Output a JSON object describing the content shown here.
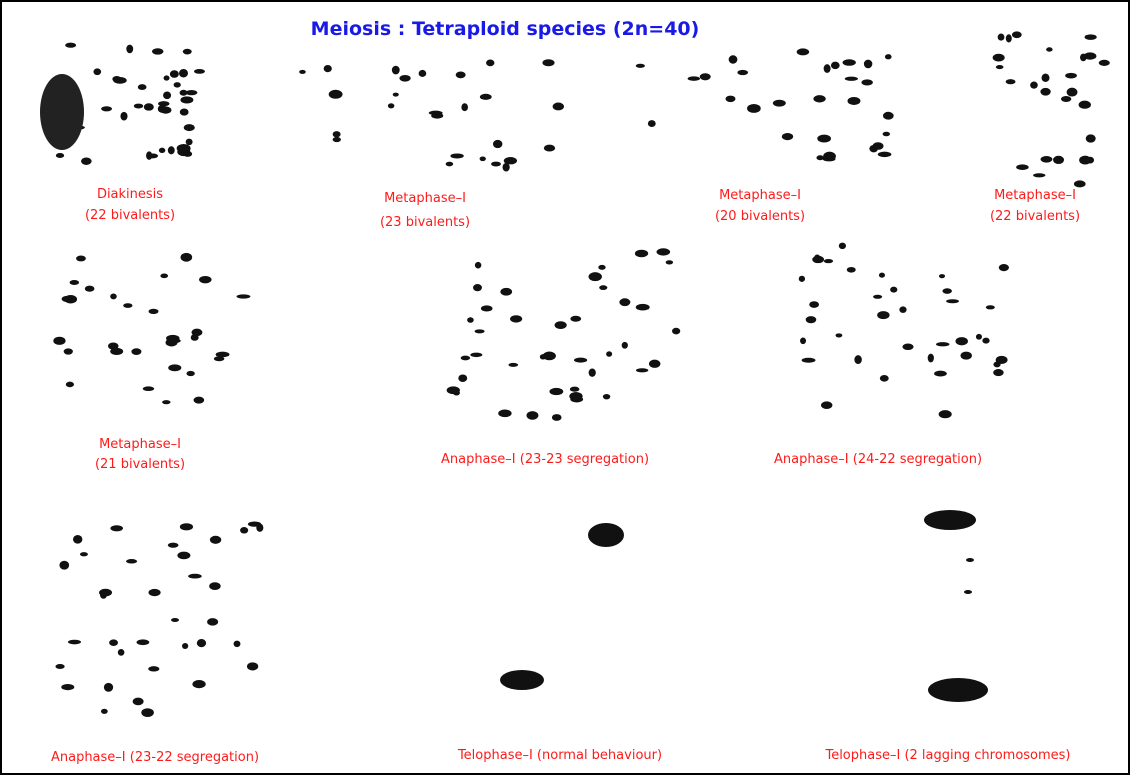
{
  "header": {
    "title": "Meiosis : Tetraploid species (2n=40)"
  },
  "panels": [
    {
      "lines": [
        "Diakinesis",
        "(22 bivalents)"
      ]
    },
    {
      "lines": [
        "Metaphase–I",
        "(23 bivalents)"
      ]
    },
    {
      "lines": [
        "Metaphase–I",
        "(20 bivalents)"
      ]
    },
    {
      "lines": [
        "Metaphase–I",
        "(22 bivalents)"
      ]
    },
    {
      "lines": [
        "Metaphase–I",
        "(21 bivalents)"
      ]
    },
    {
      "lines": [
        "Anaphase–I (23-23 segregation)"
      ]
    },
    {
      "lines": [
        "Anaphase–I (24-22 segregation)"
      ]
    },
    {
      "lines": [
        "Anaphase–I (23-22 segregation)"
      ]
    },
    {
      "lines": [
        "Telophase–I (normal behaviour)"
      ]
    },
    {
      "lines": [
        "Telophase–I (2 lagging chromosomes)"
      ]
    }
  ]
}
